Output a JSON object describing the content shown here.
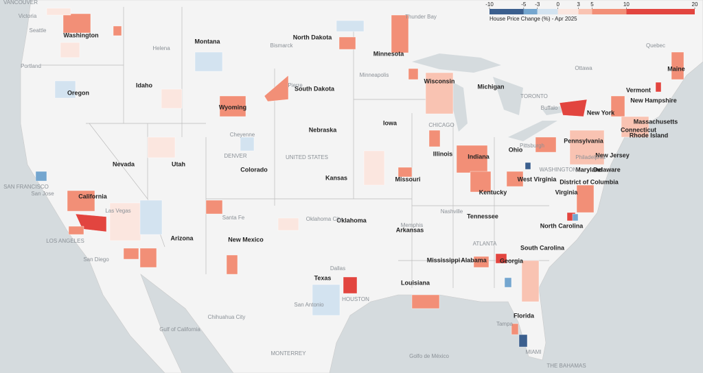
{
  "legend": {
    "title": "House Price Change (%) - Apr 2025",
    "lim": [
      -10,
      20
    ],
    "ticks": [
      -10,
      -5,
      -3,
      0,
      3,
      5,
      10,
      20
    ],
    "colors": [
      "#3b5f8e",
      "#74a6cf",
      "#d3e3f0",
      "#fbe6df",
      "#f9c3b2",
      "#f28f77",
      "#e2453f"
    ]
  },
  "state_labels": [
    "Washington",
    "Montana",
    "North Dakota",
    "Minnesota",
    "Oregon",
    "Idaho",
    "Wyoming",
    "South Dakota",
    "Wisconsin",
    "Michigan",
    "Nevada",
    "Utah",
    "Colorado",
    "Nebraska",
    "Iowa",
    "Illinois",
    "Indiana",
    "Ohio",
    "Pennsylvania",
    "New York",
    "Kansas",
    "Missouri",
    "Kentucky",
    "West Virginia",
    "Virginia",
    "California",
    "Arizona",
    "New Mexico",
    "Oklahoma",
    "Arkansas",
    "Tennessee",
    "North Carolina",
    "South Carolina",
    "Mississippi",
    "Alabama",
    "Georgia",
    "Texas",
    "Louisiana",
    "Florida",
    "Maine",
    "Vermont",
    "New Hampshire",
    "Massachusetts",
    "Connecticut",
    "Rhode Island",
    "New Jersey",
    "Delaware",
    "Maryland",
    "District of Columbia"
  ],
  "place_labels": [
    "VANCOUVER",
    "Victoria",
    "Seattle",
    "Portland",
    "SAN FRANCISCO",
    "San Jose",
    "LOS ANGELES",
    "San Diego",
    "Las Vegas",
    "Helena",
    "Bismarck",
    "Pierre",
    "Cheyenne",
    "DENVER",
    "UNITED STATES",
    "Santa Fe",
    "Oklahoma City",
    "Dallas",
    "HOUSTON",
    "San Antonio",
    "Chihuahua City",
    "MONTERREY",
    "Gulf of California",
    "Golfo de México",
    "Minneapolis",
    "CHICAGO",
    "TORONTO",
    "Ottawa",
    "Quebec",
    "Thunder Bay",
    "Memphis",
    "Nashville",
    "ATLANTA",
    "WASHINGTON",
    "Philadelphia",
    "Pittsburgh",
    "Buffalo",
    "Tampa",
    "MIAMI",
    "THE BAHAMAS"
  ]
}
